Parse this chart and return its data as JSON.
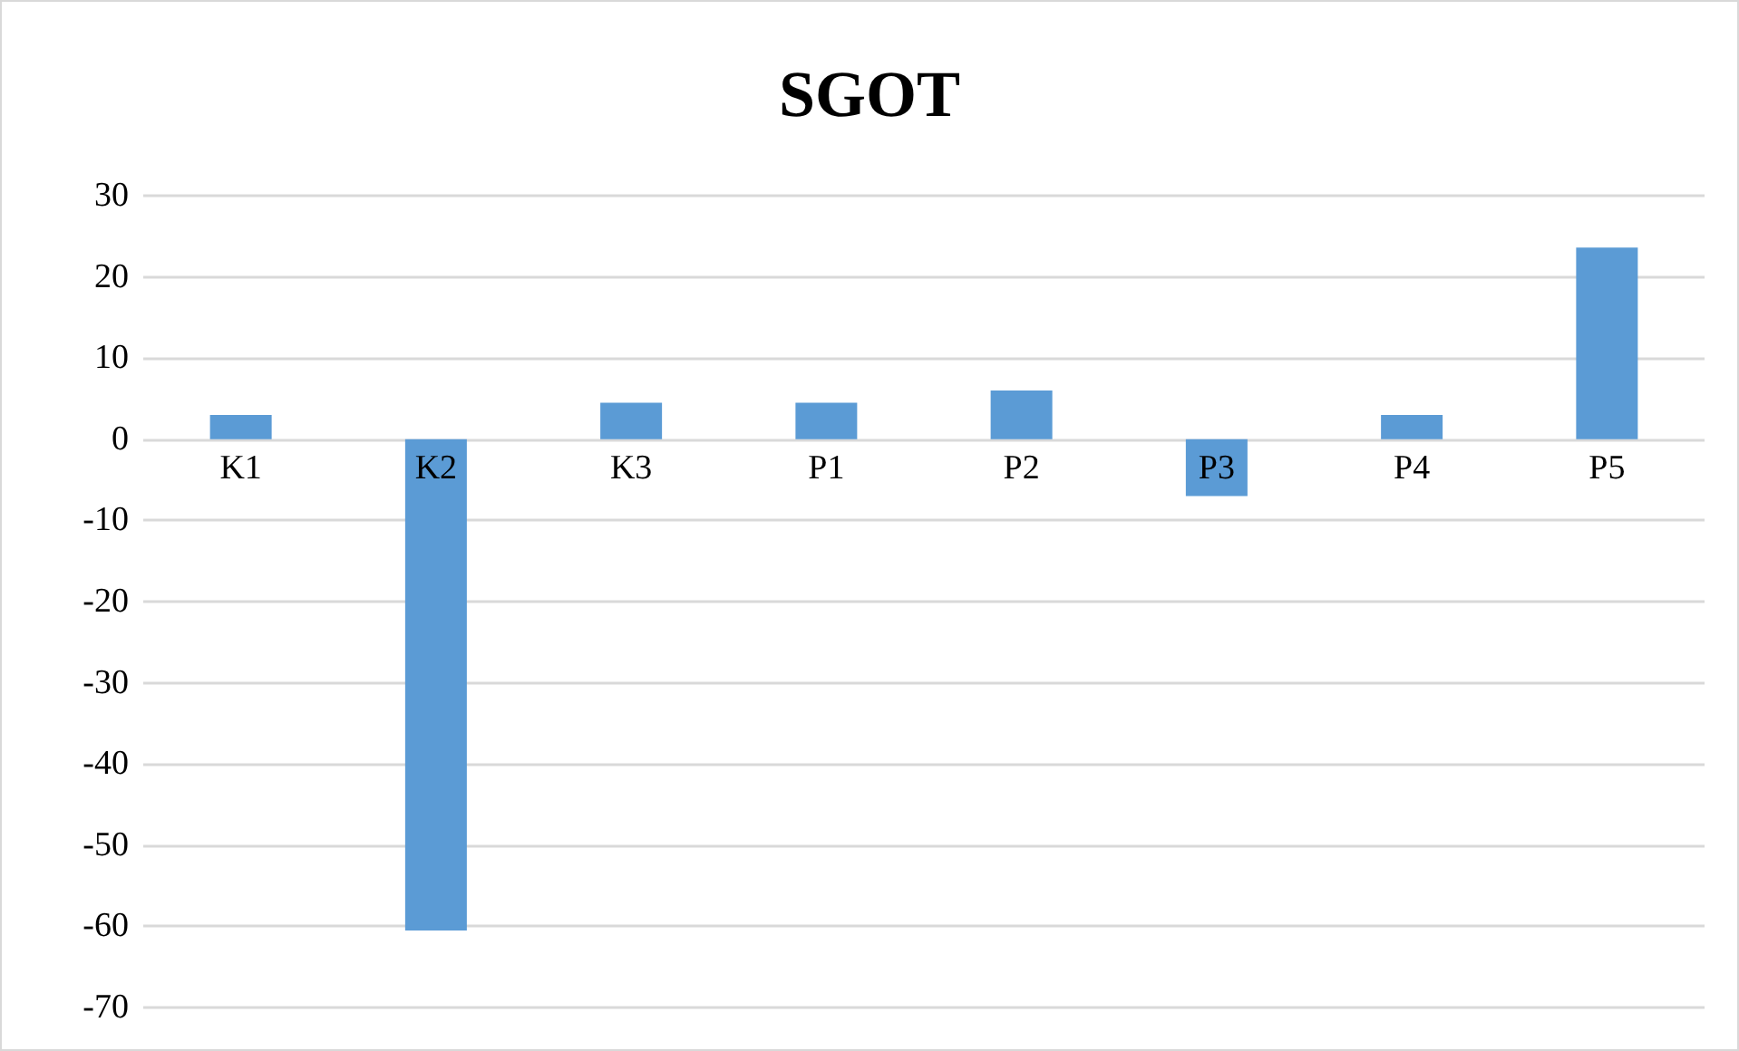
{
  "chart_data": {
    "type": "bar",
    "title": "SGOT",
    "categories": [
      "K1",
      "K2",
      "K3",
      "P1",
      "P2",
      "P3",
      "P4",
      "P5"
    ],
    "values": [
      3,
      -60.5,
      4.5,
      4.5,
      6,
      -7,
      3,
      23.6
    ],
    "color": "#5b9bd5",
    "ylim": [
      -70,
      30
    ],
    "yticks": [
      -70,
      -60,
      -50,
      -40,
      -30,
      -20,
      -10,
      0,
      10,
      20,
      30
    ],
    "grid": "y"
  }
}
